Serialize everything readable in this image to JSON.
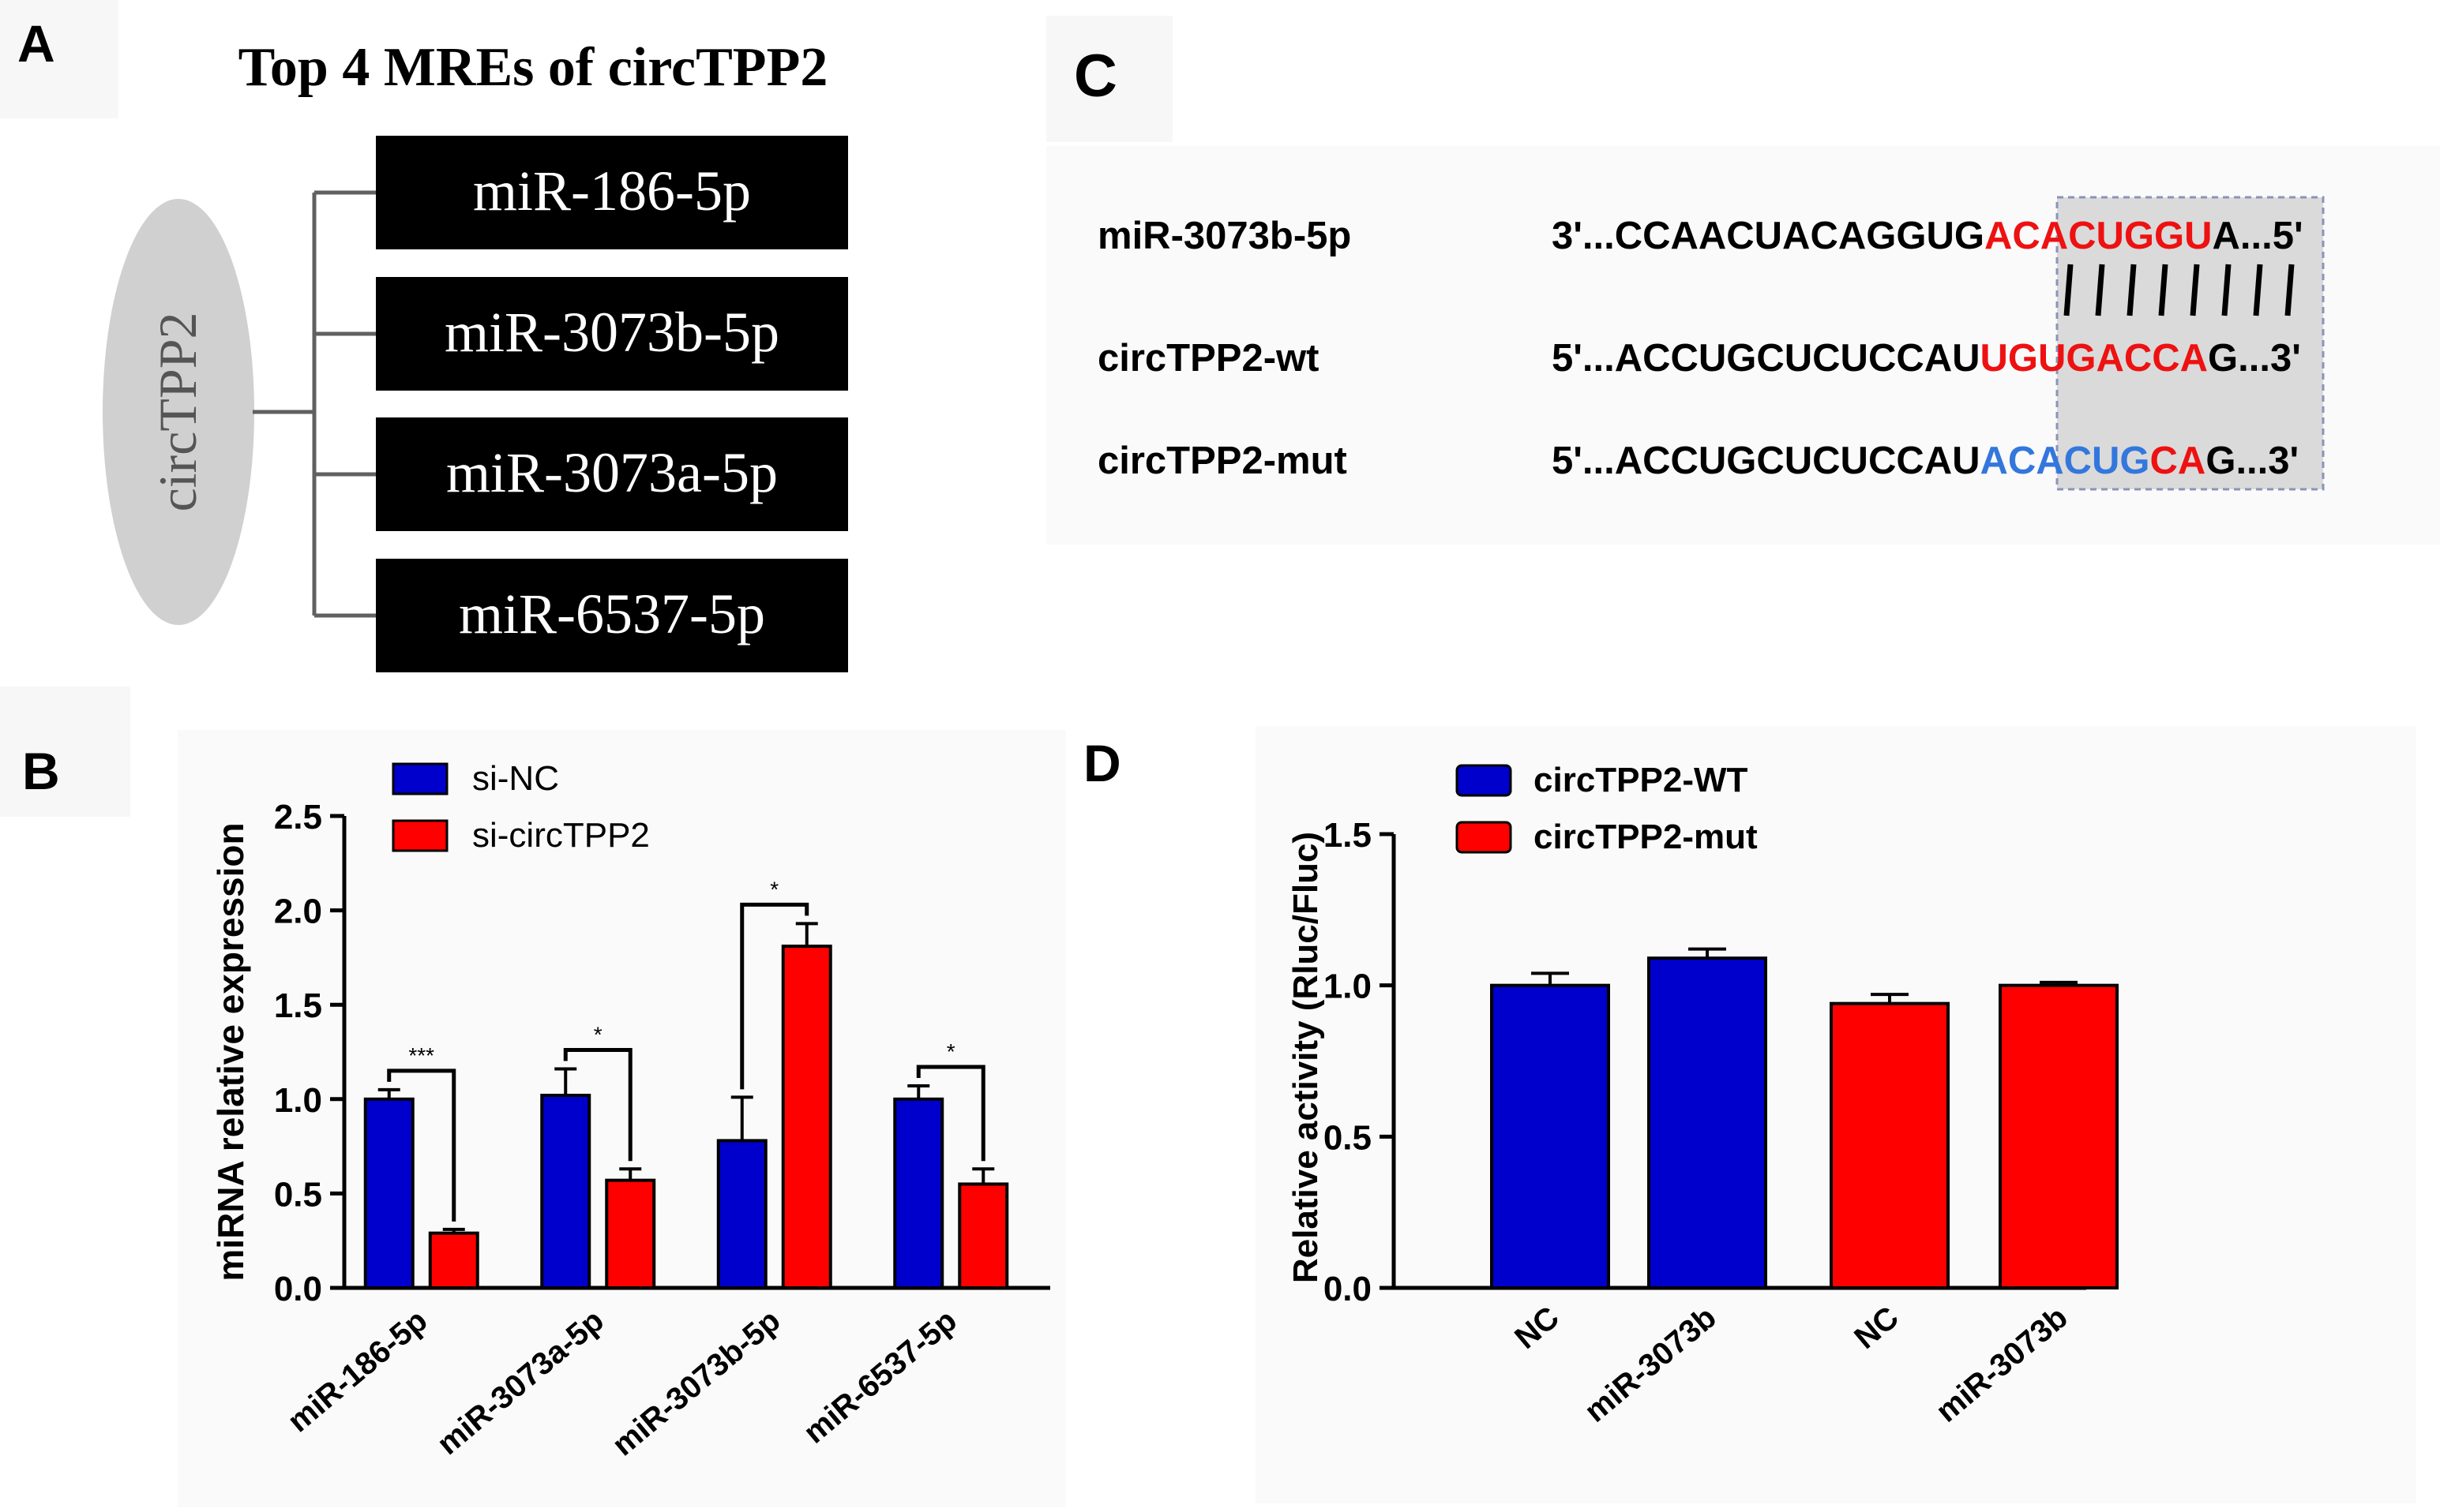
{
  "panelA": {
    "letter": "A",
    "title": "Top 4 MREs of circTPP2",
    "center": "circTPP2",
    "items": [
      "miR-186-5p",
      "miR-3073b-5p",
      "miR-3073a-5p",
      "miR-6537-5p"
    ]
  },
  "panelC": {
    "letter": "C",
    "rows": [
      {
        "name": "miR-3073b-5p",
        "pre": "3'...CCAACUACAGGUG",
        "site": "ACACUGGU",
        "post": "A...5'"
      },
      {
        "name": "circTPP2-wt",
        "pre": "5'...ACCUGCUCUCCAU",
        "site": "UGUGACCA",
        "post": "G...3'"
      },
      {
        "name": "circTPP2-mut",
        "pre": "5'...ACCUGCUCUCCAU",
        "site_mut": "ACACUG",
        "site_keep": "CA",
        "post": "G...3'"
      }
    ]
  },
  "chart_data": [
    {
      "panel": "B",
      "type": "bar",
      "ylabel": "miRNA relative expression",
      "ylim": [
        0,
        2.5
      ],
      "yticks": [
        "0.0",
        "0.5",
        "1.0",
        "1.5",
        "2.0",
        "2.5"
      ],
      "categories": [
        "miR-186-5p",
        "miR-3073a-5p",
        "miR-3073b-5p",
        "miR-6537-5p"
      ],
      "series": [
        {
          "name": "si-NC",
          "color": "#0000cc",
          "values": [
            1.0,
            1.02,
            0.78,
            1.0
          ],
          "errors": [
            0.05,
            0.14,
            0.23,
            0.07
          ]
        },
        {
          "name": "si-circTPP2",
          "color": "#ff0000",
          "values": [
            0.29,
            0.57,
            1.81,
            0.55
          ],
          "errors": [
            0.02,
            0.06,
            0.12,
            0.08
          ]
        }
      ],
      "significance": [
        "***",
        "*",
        "*",
        "*"
      ],
      "legend_position": "top-left"
    },
    {
      "panel": "D",
      "type": "bar",
      "ylabel": "Relative activity (Rluc/Fluc)",
      "ylim": [
        0,
        1.5
      ],
      "yticks": [
        "0.0",
        "0.5",
        "1.0",
        "1.5"
      ],
      "categories": [
        "NC",
        "miR-3073b",
        "NC",
        "miR-3073b"
      ],
      "values": [
        1.0,
        1.09,
        0.94,
        1.0
      ],
      "errors": [
        0.04,
        0.03,
        0.03,
        0.01
      ],
      "colors": [
        "#0000cc",
        "#0000cc",
        "#ff0000",
        "#ff0000"
      ],
      "legend": [
        {
          "name": "circTPP2-WT",
          "color": "#0000cc"
        },
        {
          "name": "circTPP2-mut",
          "color": "#ff0000"
        }
      ],
      "legend_position": "top-left"
    }
  ]
}
